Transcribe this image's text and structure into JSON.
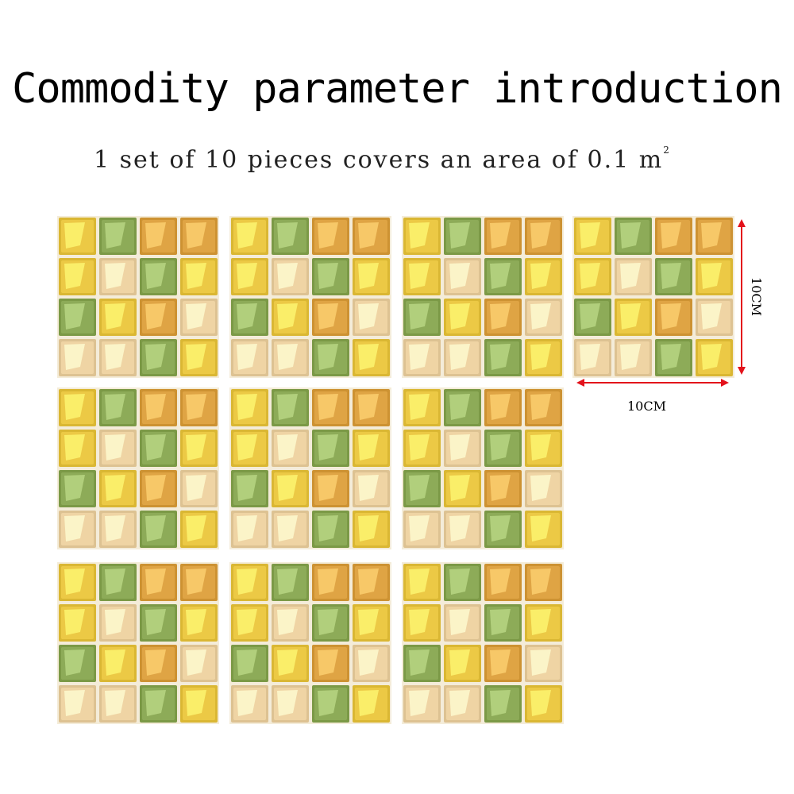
{
  "title": "Commodity parameter introduction",
  "subtitle": {
    "text": "1 set of 10 pieces covers an area of 0.1 m",
    "superscript": "2"
  },
  "dimensions": {
    "width_label": "10CM",
    "height_label": "10CM",
    "arrow_color": "#e3121b"
  },
  "sticker_pattern": [
    [
      "yellow",
      "green",
      "orange",
      "orange"
    ],
    [
      "yellow",
      "beige",
      "green",
      "yellow"
    ],
    [
      "green",
      "yellow",
      "orange",
      "beige"
    ],
    [
      "beige",
      "beige",
      "green",
      "yellow"
    ]
  ],
  "colors": {
    "yellow": "#ecc945",
    "green": "#8dab58",
    "orange": "#dfa444",
    "beige": "#efd4a4",
    "grout": "#f4ecd9"
  },
  "sticker_count": 10
}
